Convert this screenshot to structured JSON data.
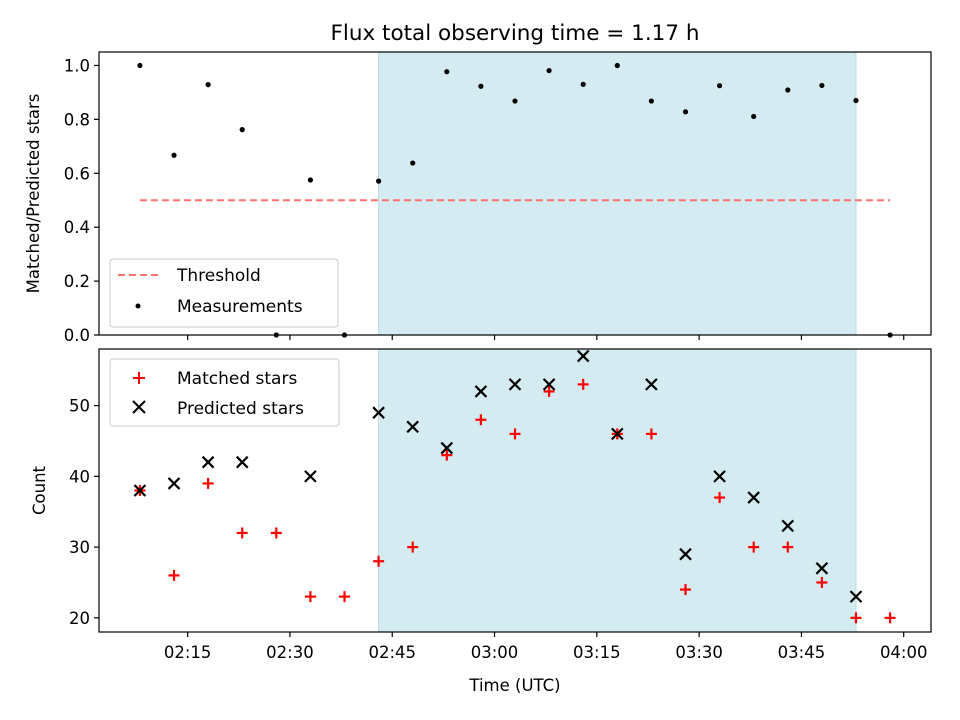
{
  "chart_data": [
    {
      "type": "scatter",
      "title": "Flux total observing time = 1.17 h",
      "ylabel": "Matched/Predicted stars",
      "xlabel": "",
      "ylim": [
        0,
        1.05
      ],
      "y_ticks": [
        "0.0",
        "0.2",
        "0.4",
        "0.6",
        "0.8",
        "1.0"
      ],
      "legend": {
        "placement": "lower-left",
        "entries": [
          "Threshold",
          "Measurements"
        ]
      },
      "threshold": {
        "name": "Threshold",
        "value": 0.5,
        "x_start": "02:08",
        "x_end": "03:58",
        "color": "#ff7070"
      },
      "shaded_region": {
        "x_start": "02:43",
        "x_end": "03:53",
        "color": "#d4ebf1"
      },
      "series": [
        {
          "name": "Measurements",
          "x": [
            "02:08",
            "02:13",
            "02:18",
            "02:23",
            "02:33",
            "02:38",
            "02:43",
            "02:48",
            "02:53",
            "02:58",
            "03:03",
            "03:08",
            "03:13",
            "03:18",
            "03:23",
            "03:28",
            "03:33",
            "03:38",
            "03:43",
            "03:48",
            "03:53",
            "03:58"
          ],
          "values": [
            1.0,
            0.667,
            0.929,
            0.762,
            0.575,
            0.0,
            0.571,
            0.638,
            0.977,
            0.923,
            0.868,
            0.981,
            0.93,
            1.0,
            0.868,
            0.828,
            0.925,
            0.811,
            0.909,
            0.926,
            0.87,
            0.0
          ],
          "color": "#000000"
        }
      ],
      "extra_points": [
        {
          "x": "02:28",
          "y": 0.0
        }
      ]
    },
    {
      "type": "scatter",
      "title": "",
      "ylabel": "Count",
      "xlabel": "Time (UTC)",
      "ylim": [
        18,
        58
      ],
      "y_ticks": [
        "20",
        "30",
        "40",
        "50"
      ],
      "x_ticks": [
        "02:15",
        "02:30",
        "02:45",
        "03:00",
        "03:15",
        "03:30",
        "03:45",
        "04:00"
      ],
      "xlim": [
        "02:02",
        "04:04"
      ],
      "legend": {
        "placement": "top-left",
        "entries": [
          "Matched stars",
          "Predicted stars"
        ]
      },
      "shaded_region": {
        "x_start": "02:43",
        "x_end": "03:53",
        "color": "#d4ebf1"
      },
      "series": [
        {
          "name": "Matched stars",
          "marker": "+",
          "color": "#ff0000",
          "x": [
            "02:08",
            "02:13",
            "02:18",
            "02:23",
            "02:28",
            "02:33",
            "02:38",
            "02:43",
            "02:48",
            "02:53",
            "02:58",
            "03:03",
            "03:08",
            "03:13",
            "03:18",
            "03:23",
            "03:28",
            "03:33",
            "03:38",
            "03:43",
            "03:48",
            "03:53",
            "03:58"
          ],
          "values": [
            38,
            26,
            39,
            32,
            32,
            23,
            23,
            28,
            30,
            43,
            48,
            46,
            52,
            53,
            46,
            46,
            24,
            37,
            30,
            30,
            25,
            20,
            20
          ]
        },
        {
          "name": "Predicted stars",
          "marker": "x",
          "color": "#000000",
          "x": [
            "02:08",
            "02:13",
            "02:18",
            "02:23",
            "02:33",
            "02:43",
            "02:48",
            "02:53",
            "02:58",
            "03:03",
            "03:08",
            "03:13",
            "03:18",
            "03:23",
            "03:28",
            "03:33",
            "03:38",
            "03:43",
            "03:48",
            "03:53"
          ],
          "values": [
            38,
            39,
            42,
            42,
            40,
            49,
            47,
            44,
            52,
            53,
            53,
            57,
            46,
            53,
            29,
            40,
            37,
            33,
            27,
            23
          ]
        }
      ]
    }
  ]
}
